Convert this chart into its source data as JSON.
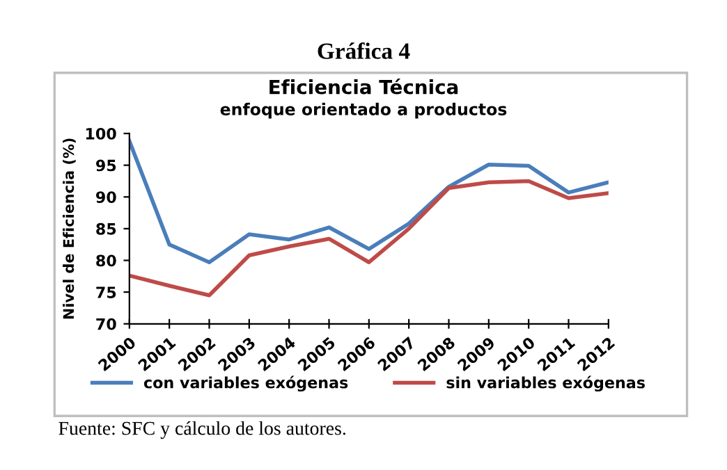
{
  "chart_data": {
    "type": "line",
    "title": "Eficiencia Técnica",
    "subtitle": "enfoque orientado a productos",
    "ylabel": "Nivel de Eficiencia (%)",
    "annotations": [
      "Gráfica 4",
      "Fuente: SFC y cálculo de los autores."
    ],
    "categories": [
      "2000",
      "2001",
      "2002",
      "2003",
      "2004",
      "2005",
      "2006",
      "2007",
      "2008",
      "2009",
      "2010",
      "2011",
      "2012"
    ],
    "series": [
      {
        "name": "con variables exógenas",
        "color": "#4a7ebb",
        "values": [
          98.8,
          82.5,
          79.7,
          84.1,
          83.3,
          85.2,
          81.8,
          85.8,
          91.6,
          95.1,
          94.9,
          90.7,
          92.3
        ]
      },
      {
        "name": "sin variables exógenas",
        "color": "#be4b48",
        "values": [
          77.6,
          76.0,
          74.5,
          80.8,
          82.2,
          83.4,
          79.7,
          85.0,
          91.4,
          92.3,
          92.5,
          89.8,
          90.6
        ]
      }
    ],
    "ylim": [
      70,
      100
    ],
    "yticks": [
      70,
      75,
      80,
      85,
      90,
      95,
      100
    ],
    "grid": false,
    "legend": "bottom",
    "marker": "none",
    "line_style": "solid"
  }
}
